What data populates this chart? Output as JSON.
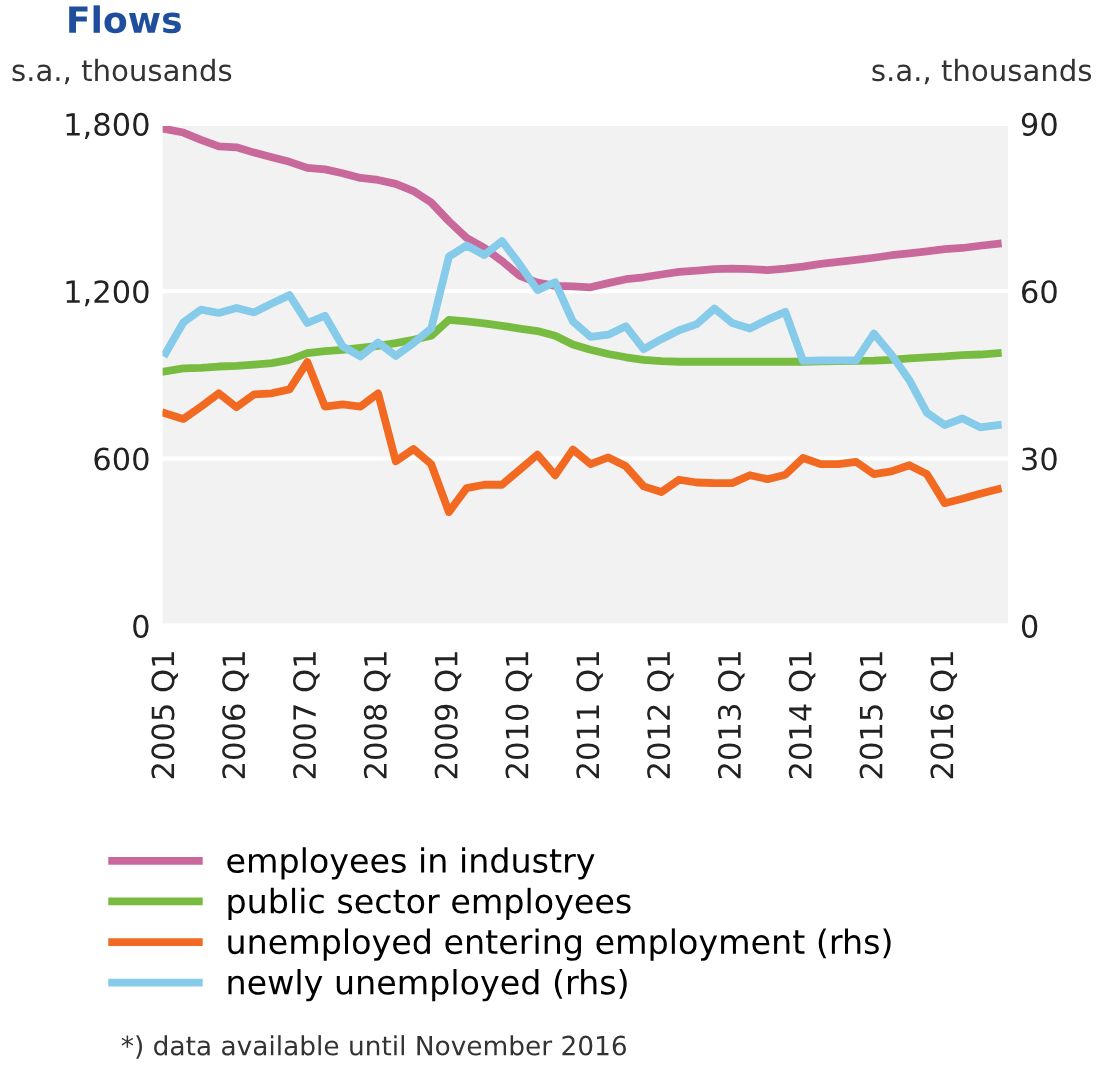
{
  "chart_data": {
    "type": "line",
    "title": "Flows",
    "ylabel": "s.a., thousands",
    "y2label": "s.a., thousands",
    "categories": [
      "2005 Q1",
      null,
      null,
      null,
      "2006 Q1",
      null,
      null,
      null,
      "2007 Q1",
      null,
      null,
      null,
      "2008 Q1",
      null,
      null,
      null,
      "2009 Q1",
      null,
      null,
      null,
      "2010 Q1",
      null,
      null,
      null,
      "2011 Q1",
      null,
      null,
      null,
      "2012 Q1",
      null,
      null,
      null,
      "2013 Q1",
      null,
      null,
      null,
      "2014 Q1",
      null,
      null,
      null,
      "2015 Q1",
      null,
      null,
      null,
      "2016 Q1",
      null,
      null,
      null
    ],
    "series": [
      {
        "name": "employees in industry",
        "color": "#c9699b",
        "values": [
          1781,
          1769,
          1743,
          1719,
          1716,
          1697,
          1680,
          1664,
          1642,
          1637,
          1623,
          1606,
          1599,
          1585,
          1559,
          1518,
          1451,
          1391,
          1355,
          1308,
          1255,
          1231,
          1219,
          1217,
          1214,
          1229,
          1243,
          1250,
          1260,
          1269,
          1274,
          1279,
          1281,
          1279,
          1276,
          1281,
          1288,
          1298,
          1305,
          1312,
          1320,
          1329,
          1336,
          1343,
          1351,
          1355,
          1363,
          1370
        ]
      },
      {
        "name": "public sector employees",
        "color": "#77bc41",
        "values": [
          913,
          923,
          925,
          930,
          932,
          937,
          942,
          954,
          978,
          985,
          990,
          997,
          1004,
          1014,
          1026,
          1040,
          1097,
          1092,
          1085,
          1076,
          1066,
          1057,
          1040,
          1009,
          990,
          975,
          963,
          954,
          949,
          947,
          947,
          947,
          947,
          947,
          947,
          947,
          947,
          948,
          949,
          950,
          951,
          954,
          959,
          963,
          966,
          971,
          973,
          978
        ]
      },
      {
        "name": "unemployed entering employment (rhs)",
        "color": "#f26a21",
        "axis": "y2",
        "values": [
          38.1,
          37.1,
          39.3,
          41.7,
          39.2,
          41.5,
          41.7,
          42.4,
          47.3,
          39.3,
          39.7,
          39.3,
          41.7,
          29.5,
          31.7,
          29.0,
          20.4,
          24.7,
          25.3,
          25.3,
          28.0,
          30.7,
          27.0,
          31.6,
          29.0,
          30.2,
          28.6,
          25.0,
          24.0,
          26.2,
          25.7,
          25.6,
          25.6,
          27.0,
          26.3,
          27.1,
          30.1,
          29.0,
          29.0,
          29.4,
          27.2,
          27.7,
          28.8,
          27.2,
          22.0,
          22.8,
          23.7,
          24.5
        ]
      },
      {
        "name": "newly unemployed (rhs)",
        "color": "#86cbea",
        "axis": "y2",
        "values": [
          48.9,
          54.4,
          56.7,
          56.1,
          57.0,
          56.2,
          57.8,
          59.3,
          54.3,
          55.6,
          50.1,
          48.3,
          50.8,
          48.4,
          50.7,
          53.3,
          66.2,
          68.2,
          66.5,
          69.0,
          64.8,
          60.2,
          61.6,
          54.6,
          51.8,
          52.2,
          53.7,
          49.6,
          51.4,
          53.0,
          54.1,
          56.9,
          54.3,
          53.3,
          54.9,
          56.3,
          47.5,
          47.6,
          47.6,
          47.6,
          52.4,
          48.6,
          44.1,
          38.2,
          36.0,
          37.2,
          35.6,
          36.0
        ]
      }
    ],
    "ylim": [
      0,
      1800
    ],
    "yticks": [
      0,
      600,
      {
        "value": 1200,
        "label": "1,200"
      },
      {
        "value": 1800,
        "label": "1,800"
      }
    ],
    "y2lim": [
      0,
      90
    ],
    "y2ticks": [
      0,
      30,
      60,
      90
    ],
    "grid": "y",
    "legend": "bottom",
    "annotations": [
      "*) data available until November 2016"
    ]
  }
}
